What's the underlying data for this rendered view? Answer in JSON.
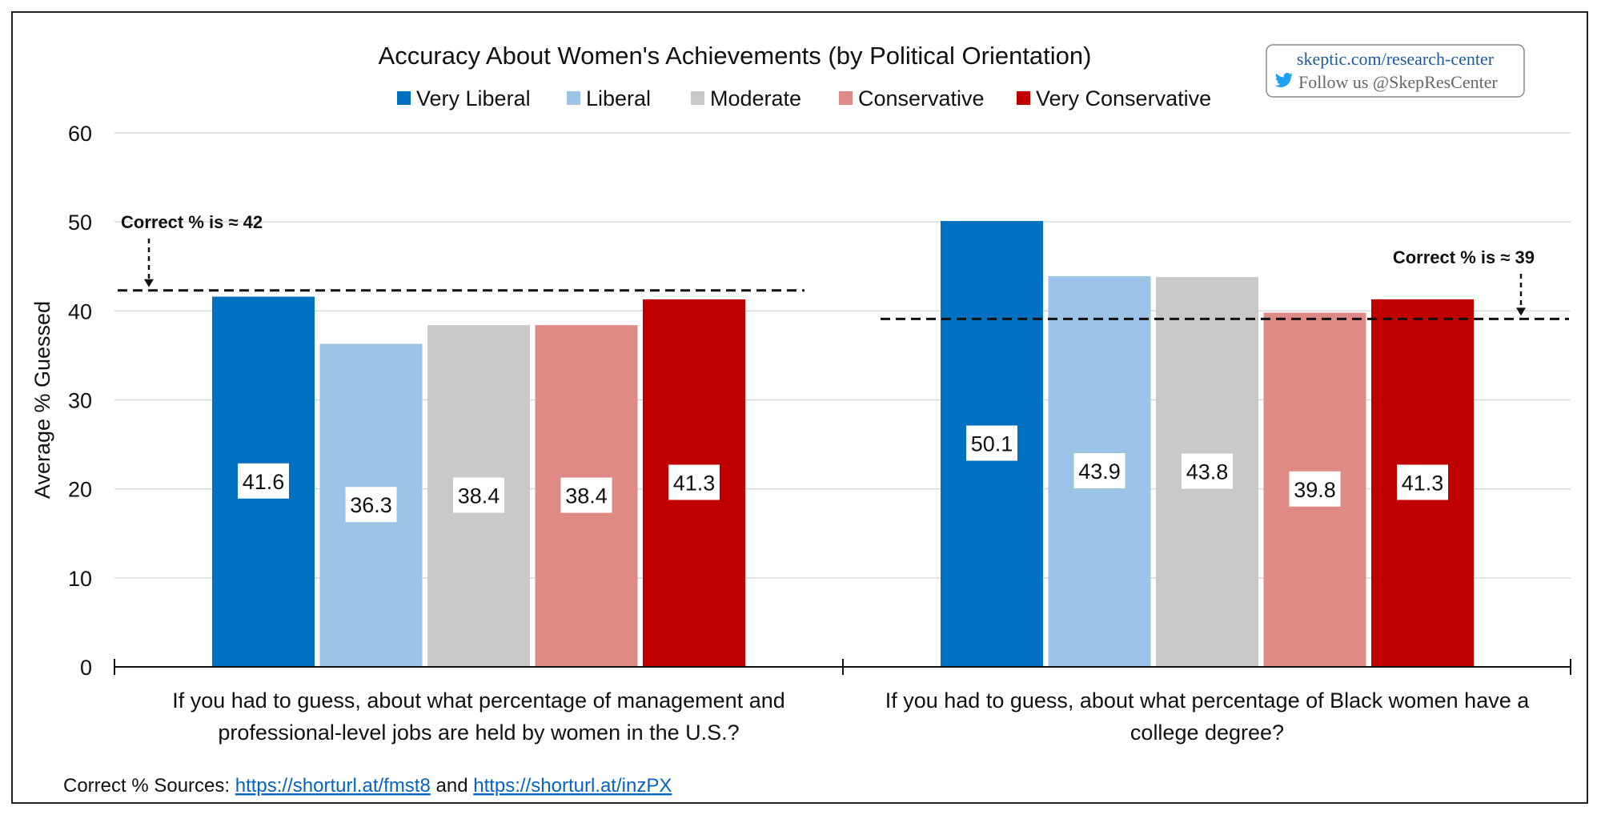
{
  "chart_data": {
    "type": "bar",
    "title": "Accuracy About Women's Achievements (by Political Orientation)",
    "ylabel": "Average % Guessed",
    "xlabel": "",
    "ylim": [
      0,
      60
    ],
    "yticks": [
      0,
      10,
      20,
      30,
      40,
      50,
      60
    ],
    "grid": true,
    "legend_position": "top",
    "categories": [
      [
        "If you had to guess, about what percentage of management and",
        "professional-level jobs are held by women in the U.S.?"
      ],
      [
        "If you had to guess, about what percentage of Black women have a",
        "college degree?"
      ]
    ],
    "series": [
      {
        "name": "Very Liberal",
        "color": "#0070C0",
        "values": [
          41.6,
          50.1
        ]
      },
      {
        "name": "Liberal",
        "color": "#9DC3E6",
        "values": [
          36.3,
          43.9
        ]
      },
      {
        "name": "Moderate",
        "color": "#C9C9C9",
        "values": [
          38.4,
          43.8
        ]
      },
      {
        "name": "Conservative",
        "color": "#E08A86",
        "values": [
          38.4,
          39.8
        ]
      },
      {
        "name": "Very Conservative",
        "color": "#C00000",
        "values": [
          41.3,
          41.3
        ]
      }
    ],
    "reference_lines": [
      {
        "value": 42.3,
        "label": "Correct % is ≈ 42"
      },
      {
        "value": 39.1,
        "label": "Correct % is ≈ 39"
      }
    ]
  },
  "badge": {
    "line1": "skeptic.com/research-center",
    "line2": "Follow us @SkepResCenter"
  },
  "sources": {
    "prefix": "Correct % Sources: ",
    "link1": "https://shorturl.at/fmst8",
    "middle": " and ",
    "link2": "https://shorturl.at/inzPX"
  },
  "colors": {
    "grid": "#D9D9D9",
    "axis": "#111111"
  }
}
